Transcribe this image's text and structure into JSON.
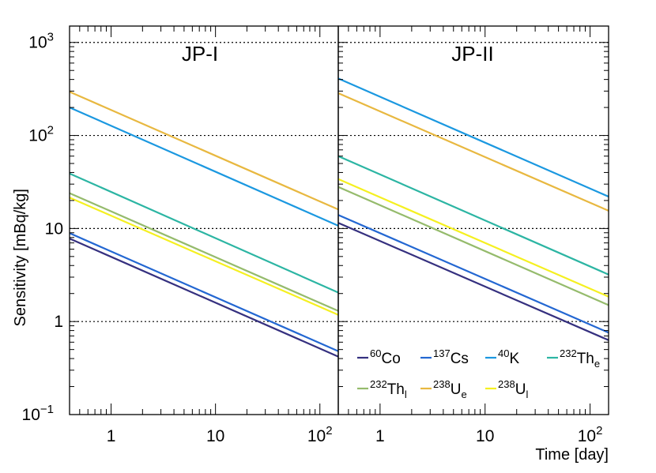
{
  "chart_data": {
    "type": "line",
    "ylabel": "Sensitivity [mBq/kg]",
    "xlabel": "Time [day]",
    "x_scale": "log",
    "y_scale": "log",
    "xlim": [
      0.4,
      150
    ],
    "ylim": [
      0.1,
      1500
    ],
    "y_ticks": [
      {
        "base": "10",
        "exp": "−1"
      },
      {
        "base": "1",
        "exp": ""
      },
      {
        "base": "10",
        "exp": ""
      },
      {
        "base": "10",
        "exp": "2"
      },
      {
        "base": "10",
        "exp": "3"
      }
    ],
    "x_ticks": [
      {
        "base": "1",
        "exp": ""
      },
      {
        "base": "10",
        "exp": ""
      },
      {
        "base": "10",
        "exp": "2"
      }
    ],
    "series_styles": [
      {
        "key": "co60",
        "color": "#35307f"
      },
      {
        "key": "cs137",
        "color": "#2367d2"
      },
      {
        "key": "k40",
        "color": "#1b98e0"
      },
      {
        "key": "th232e",
        "color": "#2cb5a3"
      },
      {
        "key": "th232l",
        "color": "#95bb6c"
      },
      {
        "key": "u238e",
        "color": "#e8b840"
      },
      {
        "key": "u238l",
        "color": "#f5f020"
      }
    ],
    "panels": [
      {
        "title": "JP-I",
        "series": [
          {
            "key": "co60",
            "x": [
              0.4,
              150
            ],
            "y": [
              7.8,
              0.42
            ]
          },
          {
            "key": "cs137",
            "x": [
              0.4,
              150
            ],
            "y": [
              8.9,
              0.48
            ]
          },
          {
            "key": "k40",
            "x": [
              0.4,
              150
            ],
            "y": [
              200,
              10.7
            ]
          },
          {
            "key": "th232e",
            "x": [
              0.4,
              150
            ],
            "y": [
              39,
              2.05
            ]
          },
          {
            "key": "th232l",
            "x": [
              0.4,
              150
            ],
            "y": [
              24,
              1.3
            ]
          },
          {
            "key": "u238e",
            "x": [
              0.4,
              150
            ],
            "y": [
              295,
              16
            ]
          },
          {
            "key": "u238l",
            "x": [
              0.4,
              150
            ],
            "y": [
              21.5,
              1.18
            ]
          }
        ]
      },
      {
        "title": "JP-II",
        "series": [
          {
            "key": "co60",
            "x": [
              0.4,
              150
            ],
            "y": [
              11.5,
              0.63
            ]
          },
          {
            "key": "cs137",
            "x": [
              0.4,
              150
            ],
            "y": [
              14,
              0.76
            ]
          },
          {
            "key": "k40",
            "x": [
              0.4,
              150
            ],
            "y": [
              410,
              22
            ]
          },
          {
            "key": "th232e",
            "x": [
              0.4,
              150
            ],
            "y": [
              60,
              3.2
            ]
          },
          {
            "key": "th232l",
            "x": [
              0.4,
              150
            ],
            "y": [
              28,
              1.5
            ]
          },
          {
            "key": "u238e",
            "x": [
              0.4,
              150
            ],
            "y": [
              285,
              15.5
            ]
          },
          {
            "key": "u238l",
            "x": [
              0.4,
              150
            ],
            "y": [
              34,
              1.85
            ]
          }
        ]
      }
    ],
    "legend": {
      "location": "lower-right",
      "entries": [
        {
          "key": "co60",
          "sup": "60",
          "name": "Co",
          "sub": ""
        },
        {
          "key": "cs137",
          "sup": "137",
          "name": "Cs",
          "sub": ""
        },
        {
          "key": "k40",
          "sup": "40",
          "name": "K",
          "sub": ""
        },
        {
          "key": "th232e",
          "sup": "232",
          "name": "Th",
          "sub": "e"
        },
        {
          "key": "th232l",
          "sup": "232",
          "name": "Th",
          "sub": "l"
        },
        {
          "key": "u238e",
          "sup": "238",
          "name": "U",
          "sub": "e"
        },
        {
          "key": "u238l",
          "sup": "238",
          "name": "U",
          "sub": "l"
        }
      ]
    }
  }
}
